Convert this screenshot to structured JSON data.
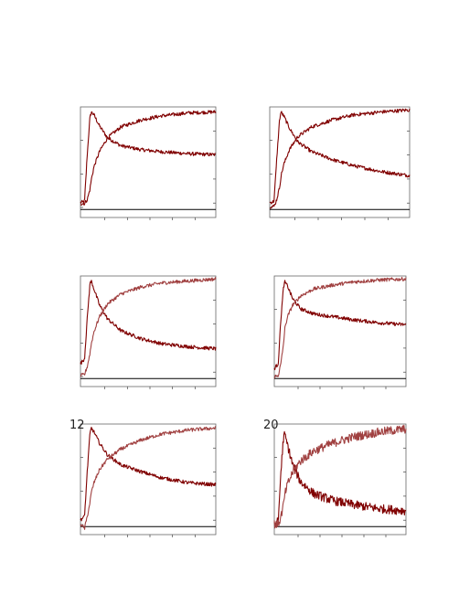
{
  "chart_data": [
    {
      "type": "line",
      "panel_label": "",
      "title": "",
      "xlabel": "",
      "ylabel": "",
      "series": [
        {
          "color": "#800000",
          "x": [
            0,
            3,
            5,
            7,
            8,
            10,
            14,
            20,
            30,
            45,
            60,
            80,
            100
          ],
          "y": [
            0.07,
            0.08,
            0.55,
            0.92,
            0.98,
            0.95,
            0.84,
            0.72,
            0.64,
            0.6,
            0.58,
            0.56,
            0.55
          ]
        },
        {
          "color": "#800000",
          "x": [
            0,
            3,
            5,
            7,
            8,
            10,
            14,
            20,
            30,
            45,
            60,
            80,
            100
          ],
          "y": [
            0.06,
            0.06,
            0.1,
            0.2,
            0.3,
            0.43,
            0.58,
            0.72,
            0.83,
            0.9,
            0.94,
            0.97,
            0.98
          ]
        }
      ]
    },
    {
      "type": "line",
      "panel_label": "",
      "title": "",
      "xlabel": "",
      "ylabel": "",
      "series": [
        {
          "color": "#800000",
          "x": [
            0,
            3,
            5,
            7,
            8,
            10,
            14,
            20,
            30,
            45,
            60,
            80,
            100
          ],
          "y": [
            0.07,
            0.08,
            0.5,
            0.9,
            0.98,
            0.94,
            0.82,
            0.68,
            0.58,
            0.5,
            0.44,
            0.38,
            0.34
          ]
        },
        {
          "color": "#800000",
          "x": [
            0,
            3,
            5,
            7,
            8,
            10,
            14,
            20,
            30,
            45,
            60,
            80,
            100
          ],
          "y": [
            0.03,
            0.03,
            0.1,
            0.22,
            0.33,
            0.45,
            0.6,
            0.73,
            0.83,
            0.9,
            0.95,
            0.98,
            1.0
          ]
        }
      ]
    },
    {
      "type": "line",
      "panel_label": "",
      "title": "",
      "xlabel": "",
      "ylabel": "",
      "series": [
        {
          "color": "#800000",
          "x": [
            0,
            3,
            5,
            7,
            8,
            10,
            14,
            20,
            30,
            45,
            60,
            80,
            100
          ],
          "y": [
            0.15,
            0.2,
            0.6,
            0.95,
            0.98,
            0.9,
            0.74,
            0.6,
            0.48,
            0.4,
            0.35,
            0.32,
            0.3
          ]
        },
        {
          "color": "#a04040",
          "x": [
            0,
            3,
            5,
            7,
            8,
            10,
            14,
            20,
            30,
            45,
            60,
            80,
            100
          ],
          "y": [
            0.03,
            0.04,
            0.12,
            0.25,
            0.35,
            0.47,
            0.62,
            0.75,
            0.85,
            0.92,
            0.96,
            0.98,
            1.0
          ]
        }
      ]
    },
    {
      "type": "line",
      "panel_label": "",
      "title": "",
      "xlabel": "",
      "ylabel": "",
      "series": [
        {
          "color": "#800000",
          "x": [
            0,
            3,
            5,
            7,
            8,
            10,
            14,
            20,
            30,
            45,
            60,
            80,
            100
          ],
          "y": [
            0.1,
            0.15,
            0.6,
            0.92,
            0.97,
            0.93,
            0.8,
            0.7,
            0.65,
            0.62,
            0.59,
            0.56,
            0.54
          ]
        },
        {
          "color": "#a04040",
          "x": [
            0,
            3,
            5,
            7,
            8,
            10,
            14,
            20,
            30,
            45,
            60,
            80,
            100
          ],
          "y": [
            0.02,
            0.03,
            0.15,
            0.35,
            0.5,
            0.62,
            0.74,
            0.83,
            0.9,
            0.94,
            0.97,
            0.99,
            1.0
          ]
        }
      ]
    },
    {
      "type": "line",
      "panel_label": "12",
      "title": "",
      "xlabel": "",
      "ylabel": "",
      "series": [
        {
          "color": "#800000",
          "x": [
            0,
            3,
            5,
            7,
            8,
            10,
            14,
            20,
            30,
            45,
            60,
            80,
            100
          ],
          "y": [
            0.07,
            0.1,
            0.55,
            0.93,
            0.99,
            0.95,
            0.84,
            0.72,
            0.62,
            0.55,
            0.49,
            0.44,
            0.42
          ]
        },
        {
          "color": "#a04040",
          "x": [
            0,
            3,
            5,
            7,
            8,
            10,
            14,
            20,
            30,
            45,
            60,
            80,
            100
          ],
          "y": [
            0.03,
            -0.02,
            0.1,
            0.24,
            0.34,
            0.44,
            0.57,
            0.68,
            0.78,
            0.87,
            0.93,
            0.97,
            0.99
          ]
        }
      ]
    },
    {
      "type": "line",
      "panel_label": "20",
      "title": "",
      "xlabel": "",
      "ylabel": "",
      "series": [
        {
          "color": "#800000",
          "x": [
            0,
            3,
            5,
            7,
            8,
            10,
            14,
            20,
            30,
            45,
            60,
            80,
            100
          ],
          "y": [
            0.03,
            0.05,
            0.55,
            0.9,
            0.92,
            0.82,
            0.62,
            0.45,
            0.33,
            0.26,
            0.22,
            0.18,
            0.16
          ]
        },
        {
          "color": "#a04040",
          "x": [
            0,
            3,
            5,
            7,
            8,
            10,
            14,
            20,
            30,
            45,
            60,
            80,
            100
          ],
          "y": [
            0.03,
            0.02,
            0.1,
            0.22,
            0.32,
            0.42,
            0.55,
            0.66,
            0.76,
            0.84,
            0.9,
            0.95,
            0.98
          ]
        }
      ]
    }
  ]
}
